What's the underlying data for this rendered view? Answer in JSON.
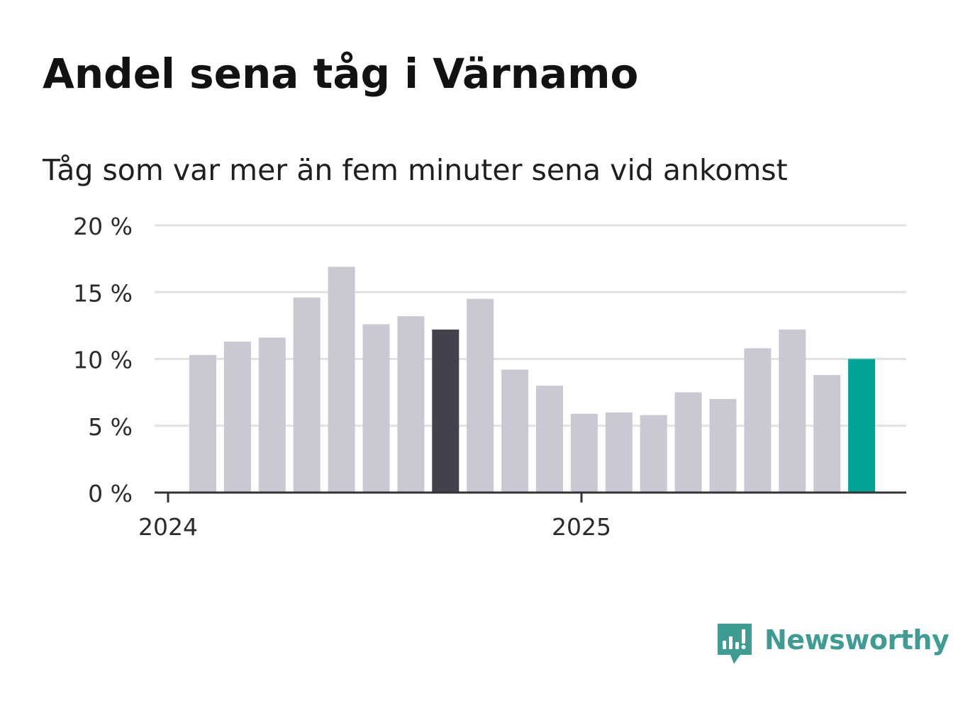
{
  "title": "Andel sena tåg i Värnamo",
  "subtitle": "Tåg som var mer än fem minuter sena vid ankomst",
  "brand": {
    "name": "Newsworthy",
    "icon": "bar-chart-speech-bubble-icon",
    "color": "#3f9c92"
  },
  "colors": {
    "default_bar": "#c9c8d3",
    "highlight_bar": "#43414e",
    "latest_bar": "#00a398",
    "grid": "#e2e2e2",
    "axis": "#333333"
  },
  "chart_data": {
    "type": "bar",
    "x": [
      "2024-01",
      "2024-02",
      "2024-03",
      "2024-04",
      "2024-05",
      "2024-06",
      "2024-07",
      "2024-08",
      "2024-09",
      "2024-10",
      "2024-11",
      "2024-12",
      "2025-01",
      "2025-02",
      "2025-03",
      "2025-04",
      "2025-05",
      "2025-06",
      "2025-07",
      "2025-08"
    ],
    "values": [
      10.3,
      11.3,
      11.6,
      14.6,
      16.9,
      12.6,
      13.2,
      12.2,
      14.5,
      9.2,
      8.0,
      5.9,
      6.0,
      5.8,
      7.5,
      7.0,
      10.8,
      12.2,
      8.8,
      10.0
    ],
    "highlight": "2024-08",
    "latest": "2025-08",
    "ylim": [
      0,
      20
    ],
    "yticks": [
      0,
      5,
      10,
      15,
      20
    ],
    "ytick_labels": [
      "0 %",
      "5 %",
      "10 %",
      "15 %",
      "20 %"
    ],
    "xtick_labels": [
      "2024",
      "2025"
    ],
    "xlabel": "",
    "ylabel": "",
    "grid": true,
    "legend": "none"
  }
}
